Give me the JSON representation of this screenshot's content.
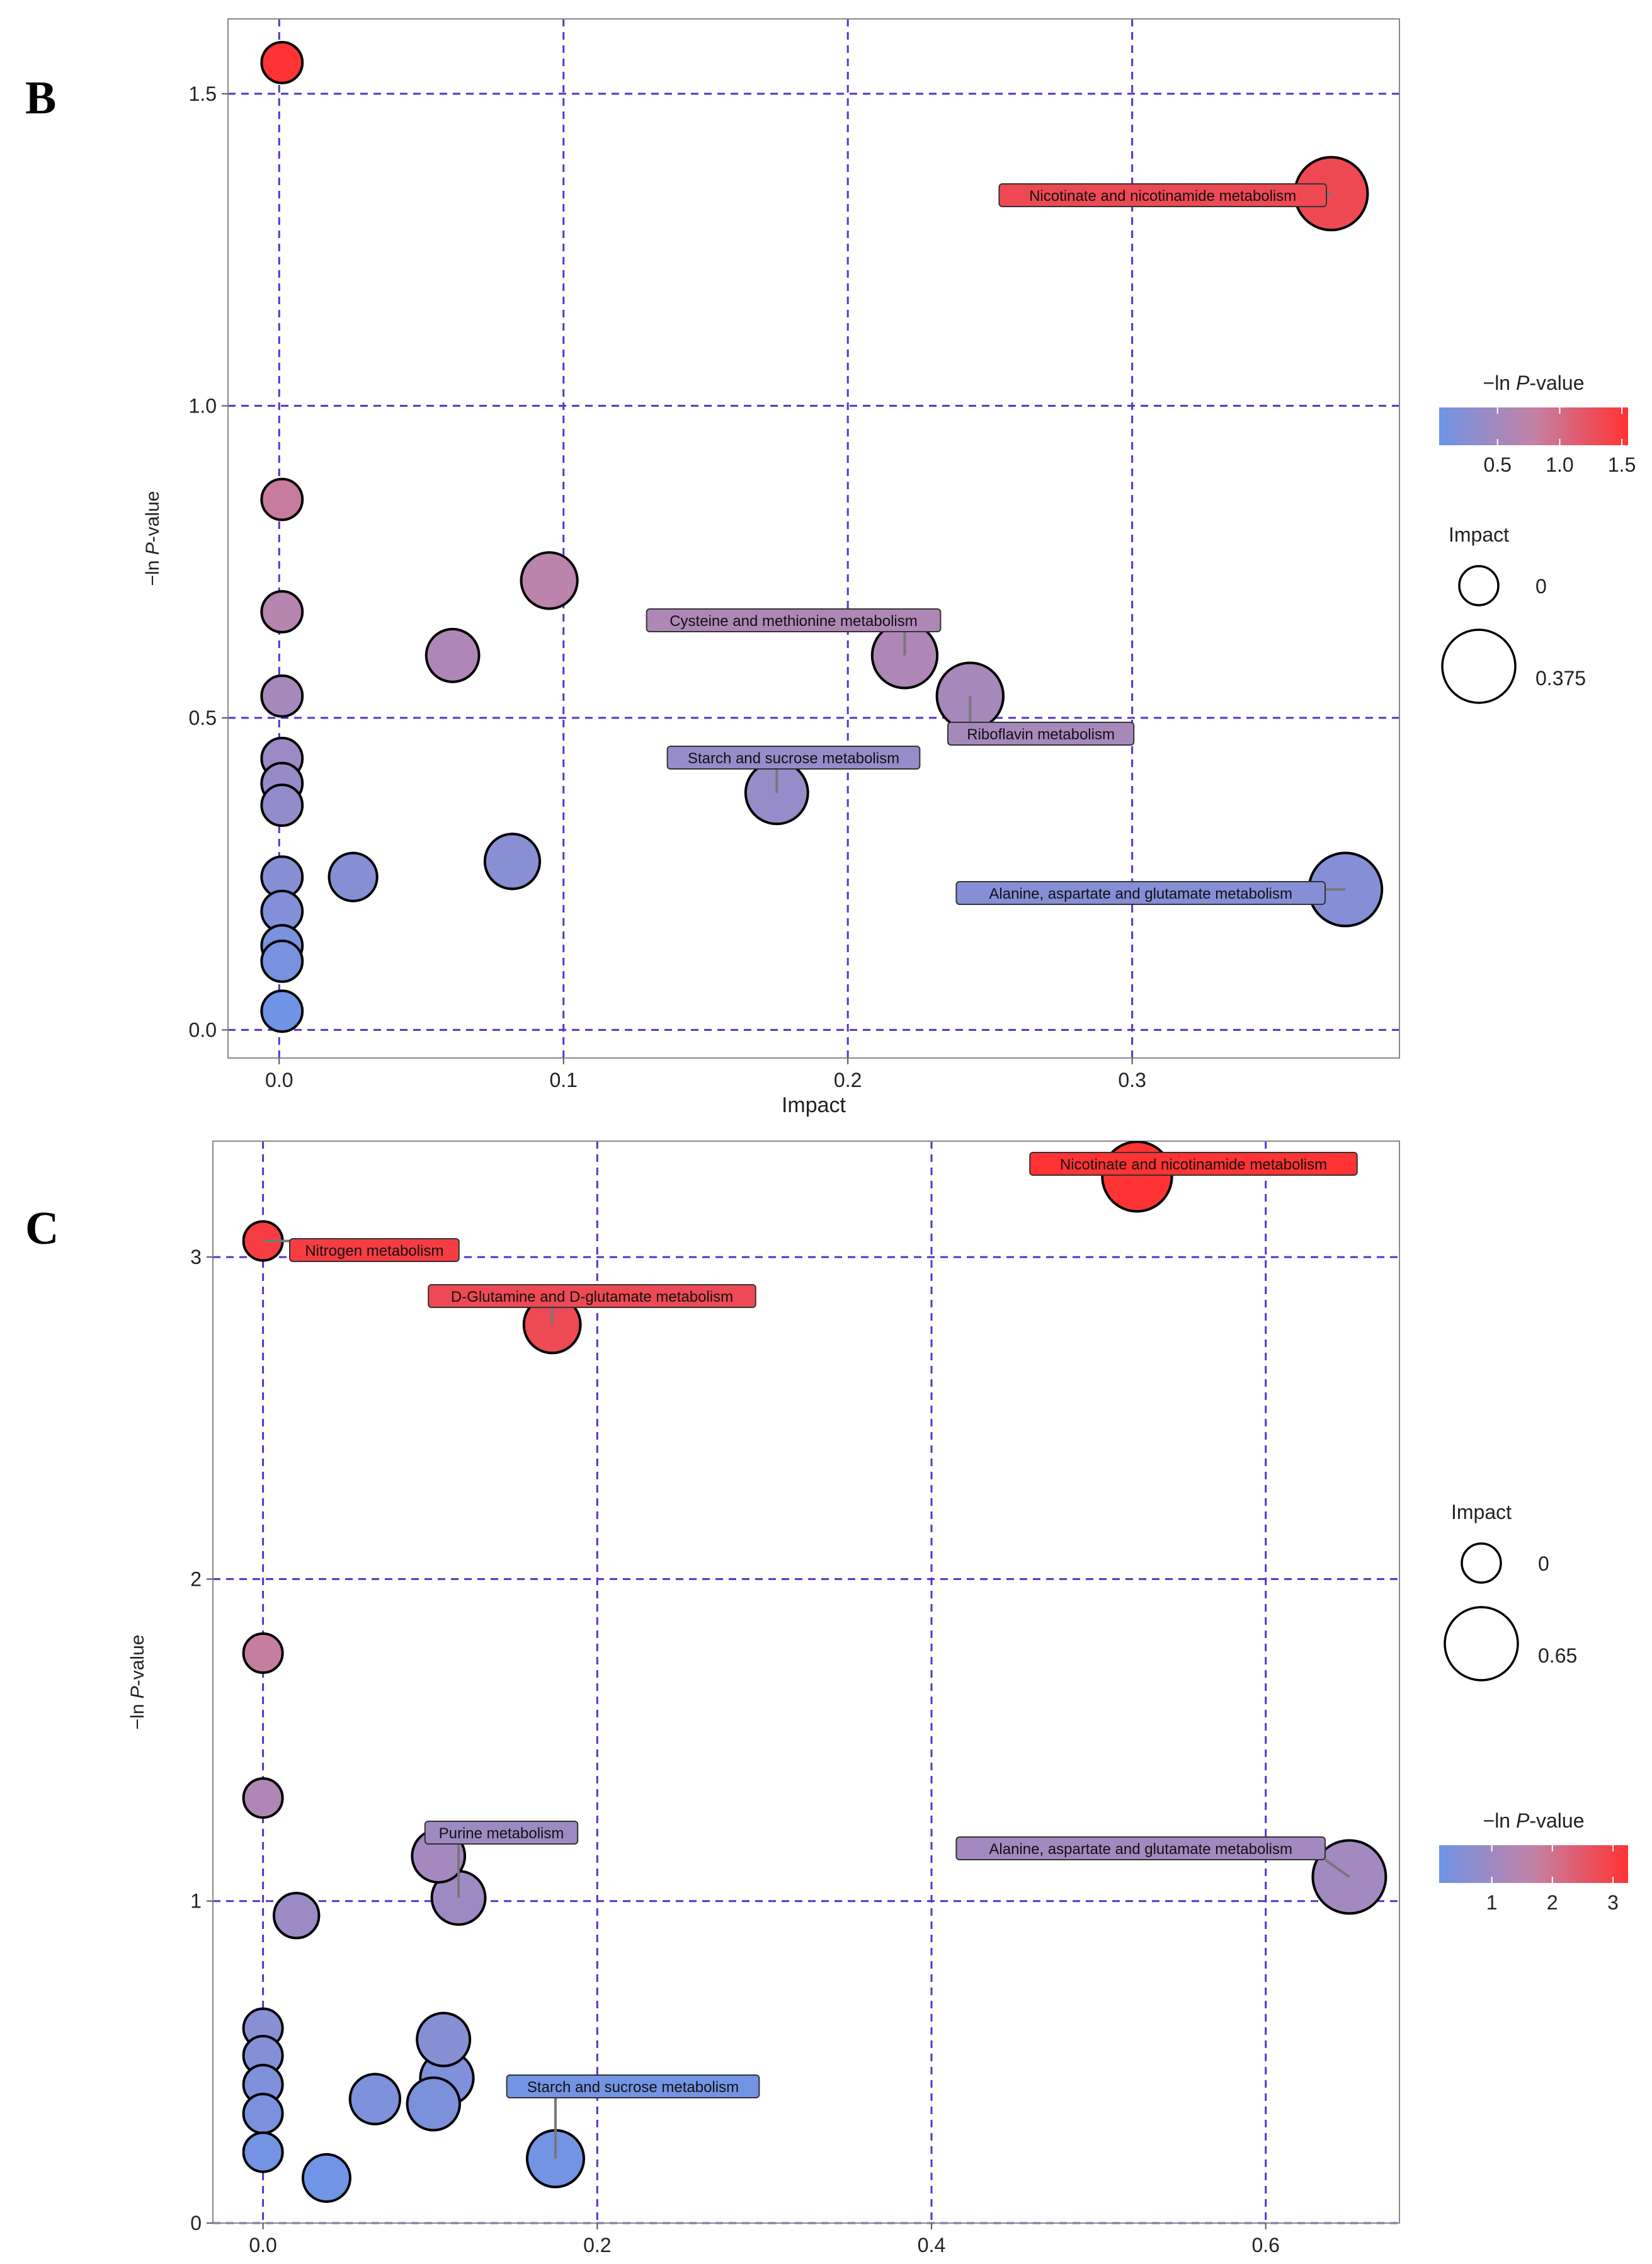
{
  "panels": {
    "b": {
      "letter": "B"
    },
    "c": {
      "letter": "C"
    }
  },
  "colors": {
    "low": "#6f94e6",
    "mid": "#c382a6",
    "high": "#ff3333",
    "grid": "#5533cc"
  },
  "chart_data": [
    {
      "type": "scatter",
      "xlabel": "Impact",
      "ylabel": "−ln P-value",
      "xlim": [
        -0.018,
        0.394
      ],
      "ylim": [
        -0.045,
        1.62
      ],
      "xticks": [
        0.0,
        0.1,
        0.2,
        0.3
      ],
      "xtick_labels": [
        "0.0",
        "0.1",
        "0.2",
        "0.3"
      ],
      "yticks": [
        0.0,
        0.5,
        1.0,
        1.5
      ],
      "ytick_labels": [
        "0.0",
        "0.5",
        "1.0",
        "1.5"
      ],
      "grid": "dashed, major ticks",
      "color_legend": {
        "title": "−ln P-value",
        "ticks": [
          0.5,
          1.0,
          1.5
        ],
        "tick_labels": [
          "0.5",
          "1.0",
          "1.5"
        ],
        "range": [
          0.03,
          1.55
        ]
      },
      "size_legend": {
        "title": "Impact",
        "values": [
          0,
          0.375
        ],
        "labels": [
          "0",
          "0.375"
        ]
      },
      "points": [
        {
          "x": 0.001,
          "y": 1.55
        },
        {
          "x": 0.37,
          "y": 1.34,
          "label": "Nicotinate and nicotinamide metabolism"
        },
        {
          "x": 0.001,
          "y": 0.85
        },
        {
          "x": 0.001,
          "y": 0.67
        },
        {
          "x": 0.001,
          "y": 0.535
        },
        {
          "x": 0.001,
          "y": 0.435
        },
        {
          "x": 0.001,
          "y": 0.395
        },
        {
          "x": 0.001,
          "y": 0.36
        },
        {
          "x": 0.001,
          "y": 0.245
        },
        {
          "x": 0.001,
          "y": 0.19
        },
        {
          "x": 0.001,
          "y": 0.135
        },
        {
          "x": 0.001,
          "y": 0.11
        },
        {
          "x": 0.001,
          "y": 0.03
        },
        {
          "x": 0.026,
          "y": 0.245
        },
        {
          "x": 0.061,
          "y": 0.6
        },
        {
          "x": 0.082,
          "y": 0.27
        },
        {
          "x": 0.095,
          "y": 0.72
        },
        {
          "x": 0.175,
          "y": 0.38,
          "label": "Starch and sucrose metabolism"
        },
        {
          "x": 0.22,
          "y": 0.6,
          "label": "Cysteine and methionine metabolism"
        },
        {
          "x": 0.243,
          "y": 0.535,
          "label": "Riboflavin metabolism"
        },
        {
          "x": 0.375,
          "y": 0.225,
          "label": "Alanine, aspartate and glutamate metabolism"
        }
      ]
    },
    {
      "type": "scatter",
      "xlabel": "Impact",
      "ylabel": "−ln P-value",
      "xlim": [
        -0.03,
        0.68
      ],
      "ylim": [
        0.0,
        3.36
      ],
      "xticks": [
        0.0,
        0.2,
        0.4,
        0.6
      ],
      "xtick_labels": [
        "0.0",
        "0.2",
        "0.4",
        "0.6"
      ],
      "yticks": [
        0,
        1,
        2,
        3
      ],
      "ytick_labels": [
        "0",
        "1",
        "2",
        "3"
      ],
      "grid": "dashed, major ticks",
      "color_legend": {
        "title": "−ln P-value",
        "ticks": [
          1,
          2,
          3
        ],
        "tick_labels": [
          "1",
          "2",
          "3"
        ],
        "range": [
          0.13,
          3.25
        ]
      },
      "size_legend": {
        "title": "Impact",
        "values": [
          0,
          0.65
        ],
        "labels": [
          "0",
          "0.65"
        ]
      },
      "points": [
        {
          "x": 0.0,
          "y": 3.05,
          "label": "Nitrogen metabolism"
        },
        {
          "x": 0.523,
          "y": 3.25,
          "label": "Nicotinate and nicotinamide metabolism"
        },
        {
          "x": 0.173,
          "y": 2.79,
          "label": "D-Glutamine and D-glutamate metabolism"
        },
        {
          "x": 0.0,
          "y": 1.77
        },
        {
          "x": 0.0,
          "y": 1.32
        },
        {
          "x": 0.105,
          "y": 1.14
        },
        {
          "x": 0.117,
          "y": 1.01,
          "label": "Purine metabolism"
        },
        {
          "x": 0.02,
          "y": 0.955
        },
        {
          "x": 0.65,
          "y": 1.075,
          "label": "Alanine, aspartate and glutamate metabolism"
        },
        {
          "x": 0.0,
          "y": 0.605
        },
        {
          "x": 0.0,
          "y": 0.52
        },
        {
          "x": 0.0,
          "y": 0.43
        },
        {
          "x": 0.0,
          "y": 0.34
        },
        {
          "x": 0.0,
          "y": 0.22
        },
        {
          "x": 0.038,
          "y": 0.14
        },
        {
          "x": 0.067,
          "y": 0.385
        },
        {
          "x": 0.108,
          "y": 0.57
        },
        {
          "x": 0.11,
          "y": 0.45
        },
        {
          "x": 0.102,
          "y": 0.37
        },
        {
          "x": 0.175,
          "y": 0.2,
          "label": "Starch and sucrose metabolism"
        }
      ]
    }
  ]
}
